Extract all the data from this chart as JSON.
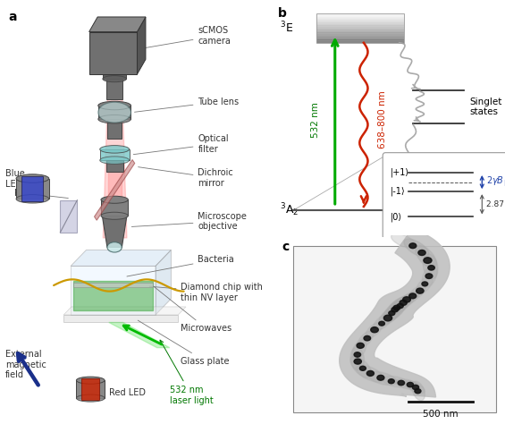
{
  "panel_a_label": "a",
  "panel_b_label": "b",
  "panel_c_label": "c",
  "bg_color": "#ffffff",
  "green_color": "#00aa00",
  "red_color": "#cc2200",
  "navy_arrow": "#1a2f8a"
}
